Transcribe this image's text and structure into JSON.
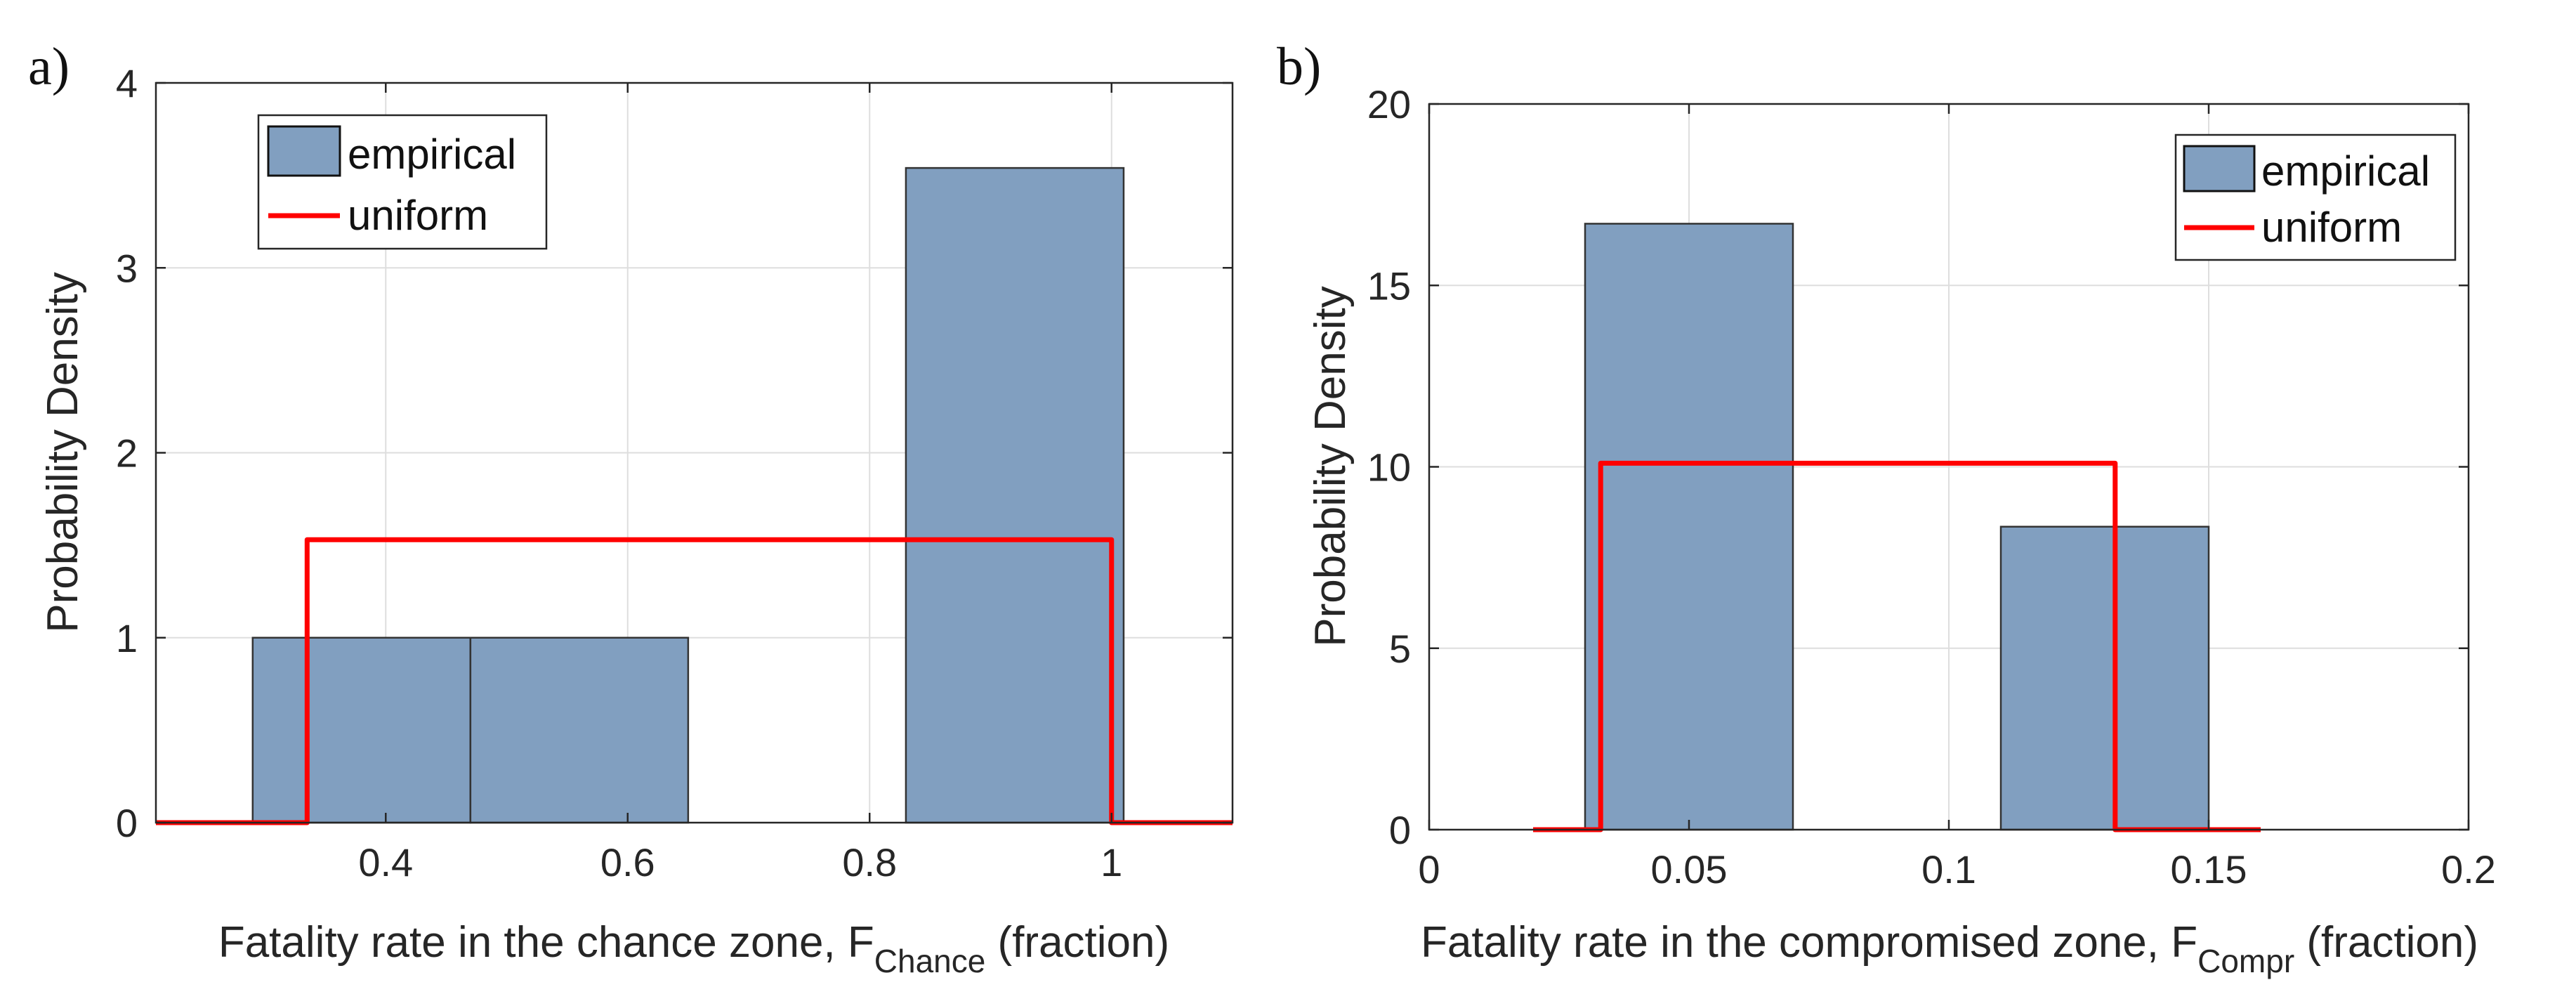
{
  "chart_data": [
    {
      "type": "bar",
      "panel_label": "a)",
      "xlabel": "Fatality rate in the chance zone, F",
      "xlabel_sub": "Chance",
      "xlabel_suffix": " (fraction)",
      "ylabel": "Probability Density",
      "xlim": [
        0.21,
        1.1
      ],
      "ylim": [
        0,
        4
      ],
      "xticks": [
        0.4,
        0.6,
        0.8,
        1
      ],
      "xtick_labels": [
        "0.4",
        "0.6",
        "0.8",
        "1"
      ],
      "yticks": [
        0,
        1,
        2,
        3,
        4
      ],
      "ytick_labels": [
        "0",
        "1",
        "2",
        "3",
        "4"
      ],
      "grid": true,
      "legend": {
        "position": "top-left",
        "entries": [
          "empirical",
          "uniform"
        ]
      },
      "series": [
        {
          "name": "empirical",
          "type": "histogram",
          "color": "#819fc0",
          "bins": [
            {
              "x0": 0.29,
              "x1": 0.47,
              "value": 1.0
            },
            {
              "x0": 0.47,
              "x1": 0.65,
              "value": 1.0
            },
            {
              "x0": 0.83,
              "x1": 1.01,
              "value": 3.54
            }
          ]
        },
        {
          "name": "uniform",
          "type": "line",
          "color": "#ff0000",
          "points": [
            [
              0.21,
              0
            ],
            [
              0.335,
              0
            ],
            [
              0.335,
              1.53
            ],
            [
              1.0,
              1.53
            ],
            [
              1.0,
              0
            ],
            [
              1.1,
              0
            ]
          ]
        }
      ]
    },
    {
      "type": "bar",
      "panel_label": "b)",
      "xlabel": "Fatality rate in the compromised zone, F",
      "xlabel_sub": "Compr",
      "xlabel_suffix": " (fraction)",
      "ylabel": "Probability Density",
      "xlim": [
        0,
        0.2
      ],
      "ylim": [
        0,
        20
      ],
      "xticks": [
        0,
        0.05,
        0.1,
        0.15,
        0.2
      ],
      "xtick_labels": [
        "0",
        "0.05",
        "0.1",
        "0.15",
        "0.2"
      ],
      "yticks": [
        0,
        5,
        10,
        15,
        20
      ],
      "ytick_labels": [
        "0",
        "5",
        "10",
        "15",
        "20"
      ],
      "grid": true,
      "legend": {
        "position": "top-right",
        "entries": [
          "empirical",
          "uniform"
        ]
      },
      "series": [
        {
          "name": "empirical",
          "type": "histogram",
          "color": "#819fc0",
          "bins": [
            {
              "x0": 0.03,
              "x1": 0.07,
              "value": 16.7
            },
            {
              "x0": 0.11,
              "x1": 0.15,
              "value": 8.35
            }
          ]
        },
        {
          "name": "uniform",
          "type": "line",
          "color": "#ff0000",
          "points": [
            [
              0.02,
              0
            ],
            [
              0.033,
              0
            ],
            [
              0.033,
              10.1
            ],
            [
              0.132,
              10.1
            ],
            [
              0.132,
              0
            ],
            [
              0.16,
              0
            ]
          ]
        }
      ]
    }
  ]
}
